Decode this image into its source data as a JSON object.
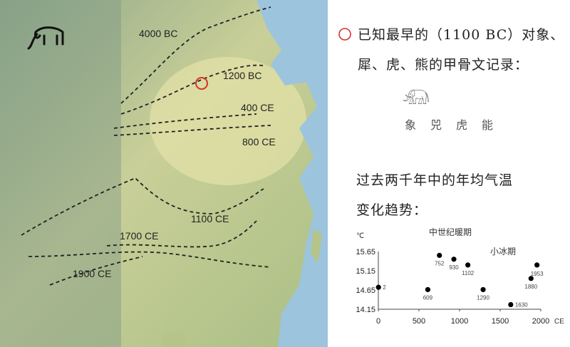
{
  "map": {
    "labels": [
      "4000 BC",
      "1200 BC",
      "400 CE",
      "800 CE",
      "1100 CE",
      "1700 CE",
      "1900 CE"
    ],
    "marker_color": "#d9302c"
  },
  "text": {
    "line1": "已知最早的（1100 BC）对象、",
    "line2": "犀、虎、熊的甲骨文记录：",
    "glyph_names": [
      "象",
      "兕",
      "虎",
      "能"
    ],
    "heading1": "过去两千年中的年均气温",
    "heading2": "变化趋势："
  },
  "chart_data": {
    "type": "scatter",
    "title": "",
    "xlabel": "CE",
    "ylabel": "℃",
    "xlim": [
      0,
      2000
    ],
    "ylim": [
      14.15,
      15.65
    ],
    "xticks": [
      0,
      500,
      1000,
      1500,
      2000
    ],
    "yticks": [
      14.15,
      14.65,
      15.15,
      15.65
    ],
    "annotations": [
      "中世纪暖期",
      "小冰期"
    ],
    "points": [
      {
        "x": 2,
        "y": 14.72,
        "label": "2"
      },
      {
        "x": 609,
        "y": 14.66,
        "label": "609"
      },
      {
        "x": 752,
        "y": 15.55,
        "label": "752"
      },
      {
        "x": 930,
        "y": 15.45,
        "label": "930"
      },
      {
        "x": 1102,
        "y": 15.3,
        "label": "1102"
      },
      {
        "x": 1290,
        "y": 14.66,
        "label": "1290"
      },
      {
        "x": 1630,
        "y": 14.27,
        "label": "1630"
      },
      {
        "x": 1880,
        "y": 14.95,
        "label": "1880"
      },
      {
        "x": 1953,
        "y": 15.3,
        "label": "1953"
      }
    ]
  }
}
